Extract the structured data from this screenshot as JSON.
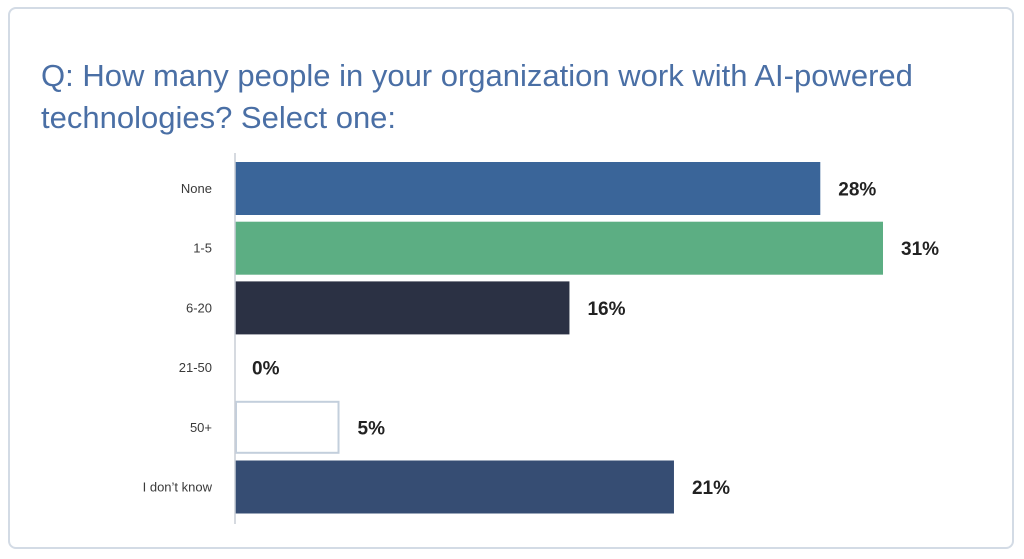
{
  "chart_data": {
    "type": "bar",
    "orientation": "horizontal",
    "title": "Q: How many people in your organization work with AI-powered technologies? Select one:",
    "categories": [
      "None",
      "1-5",
      "6-20",
      "21-50",
      "50+",
      "I don’t know"
    ],
    "values": [
      28,
      31,
      16,
      0,
      5,
      21
    ],
    "value_labels": [
      "28%",
      "31%",
      "16%",
      "0%",
      "5%",
      "21%"
    ],
    "unit": "%",
    "xlim": [
      0,
      31
    ],
    "grid": false,
    "legend": "none",
    "bar_colors": [
      "#3a6599",
      "#5cae83",
      "#2b3144",
      "#ffffff",
      "#ffffff",
      "#364d73"
    ],
    "bar_outline_colors": [
      "",
      "",
      "",
      "",
      "#c3cfdc",
      ""
    ]
  },
  "colors": {
    "title": "#4a6fa5",
    "axis": "#c9ced6",
    "card_border": "#d3dbe5"
  }
}
